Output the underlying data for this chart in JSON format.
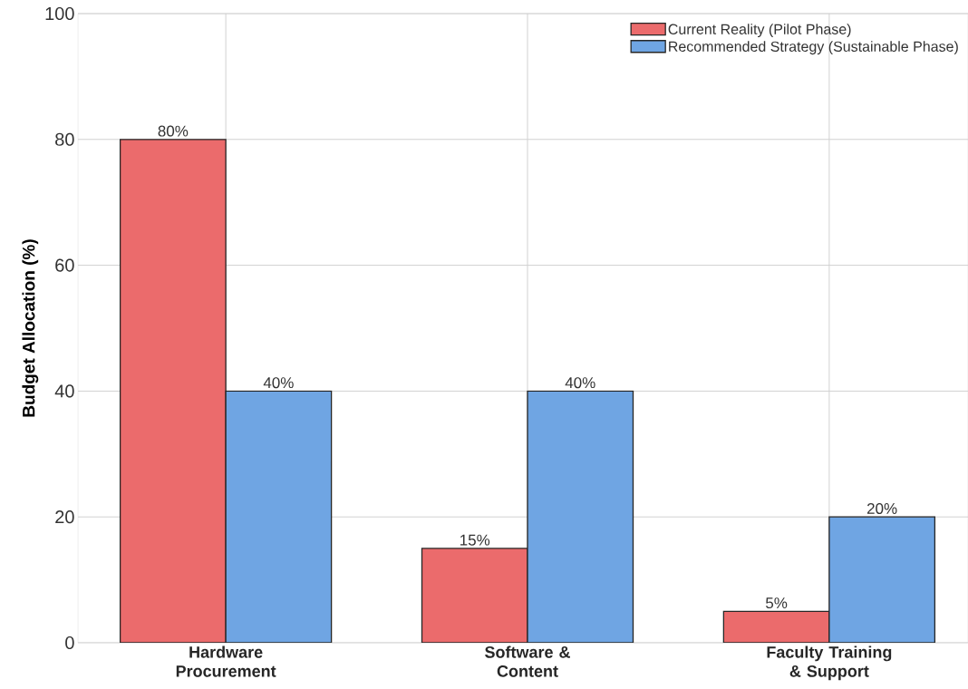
{
  "chart_data": {
    "type": "bar",
    "ylabel": "Budget Allocation (%)",
    "categories": [
      "Hardware Procurement",
      "Software & Content",
      "Faculty Training & Support"
    ],
    "series": [
      {
        "name": "Current Reality (Pilot Phase)",
        "color": "#eb6b6c",
        "values": [
          80,
          15,
          5
        ],
        "value_labels": [
          "80%",
          "15%",
          "5%"
        ]
      },
      {
        "name": "Recommended Strategy (Sustainable Phase)",
        "color": "#6fa5e3",
        "values": [
          40,
          40,
          20
        ],
        "value_labels": [
          "40%",
          "40%",
          "20%"
        ]
      }
    ],
    "ylim": [
      0,
      100
    ],
    "yticks": [
      0,
      20,
      40,
      60,
      80,
      100
    ],
    "grid": true,
    "legend": "top right"
  }
}
